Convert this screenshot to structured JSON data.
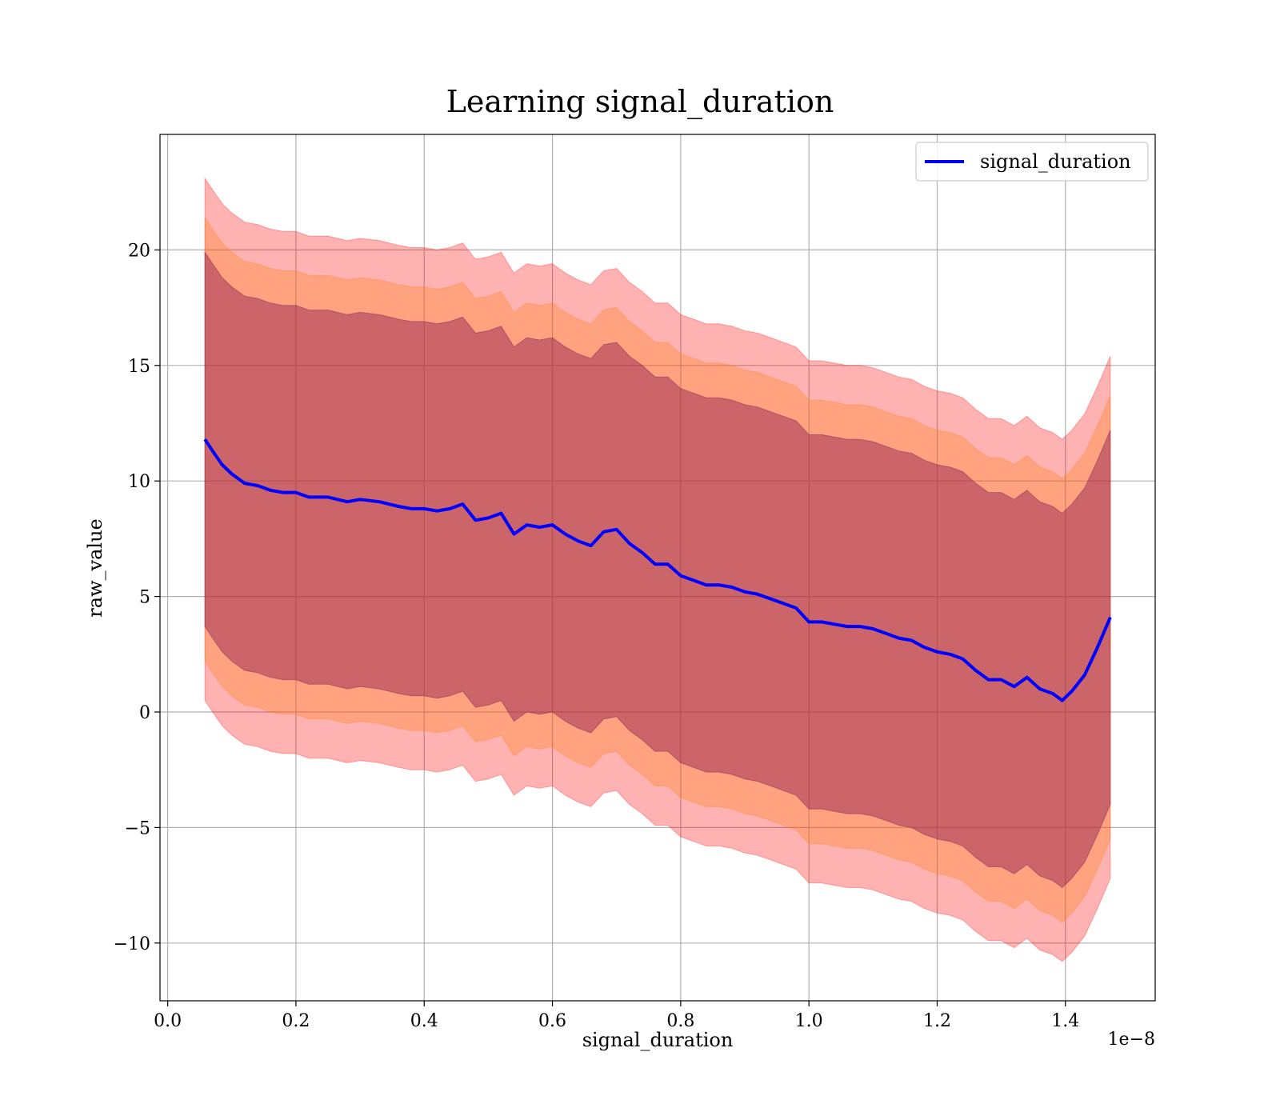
{
  "chart_data": {
    "type": "line",
    "title": "Learning signal_duration",
    "xlabel": "signal_duration",
    "ylabel": "raw_value",
    "x_offset_label": "1e−8",
    "xlim": [
      -0.012,
      1.54
    ],
    "ylim": [
      -12.5,
      25
    ],
    "grid": true,
    "legend": {
      "position": "top-right",
      "entries": [
        "signal_duration"
      ]
    },
    "x_ticks": [
      0.0,
      0.2,
      0.4,
      0.6,
      0.8,
      1.0,
      1.2,
      1.4
    ],
    "x_tick_labels": [
      "0.0",
      "0.2",
      "0.4",
      "0.6",
      "0.8",
      "1.0",
      "1.2",
      "1.4"
    ],
    "y_ticks": [
      -10,
      -5,
      0,
      5,
      10,
      15,
      20
    ],
    "y_tick_labels": [
      "−10",
      "−5",
      "0",
      "5",
      "10",
      "15",
      "20"
    ],
    "series": [
      {
        "name": "signal_duration",
        "color": "#0000ff",
        "x": [
          0.058,
          0.07,
          0.085,
          0.1,
          0.12,
          0.14,
          0.16,
          0.18,
          0.2,
          0.22,
          0.25,
          0.28,
          0.3,
          0.33,
          0.36,
          0.38,
          0.4,
          0.42,
          0.44,
          0.46,
          0.48,
          0.5,
          0.52,
          0.54,
          0.56,
          0.58,
          0.6,
          0.62,
          0.64,
          0.66,
          0.68,
          0.7,
          0.72,
          0.74,
          0.76,
          0.78,
          0.8,
          0.82,
          0.84,
          0.86,
          0.88,
          0.9,
          0.92,
          0.94,
          0.96,
          0.98,
          1.0,
          1.02,
          1.04,
          1.06,
          1.08,
          1.1,
          1.12,
          1.14,
          1.16,
          1.18,
          1.2,
          1.22,
          1.24,
          1.26,
          1.28,
          1.3,
          1.32,
          1.34,
          1.36,
          1.38,
          1.395,
          1.41,
          1.43,
          1.45,
          1.47
        ],
        "values": [
          11.8,
          11.3,
          10.7,
          10.3,
          9.9,
          9.8,
          9.6,
          9.5,
          9.5,
          9.3,
          9.3,
          9.1,
          9.2,
          9.1,
          8.9,
          8.8,
          8.8,
          8.7,
          8.8,
          9.0,
          8.3,
          8.4,
          8.6,
          7.7,
          8.1,
          8.0,
          8.1,
          7.7,
          7.4,
          7.2,
          7.8,
          7.9,
          7.3,
          6.9,
          6.4,
          6.4,
          5.9,
          5.7,
          5.5,
          5.5,
          5.4,
          5.2,
          5.1,
          4.9,
          4.7,
          4.5,
          3.9,
          3.9,
          3.8,
          3.7,
          3.7,
          3.6,
          3.4,
          3.2,
          3.1,
          2.8,
          2.6,
          2.5,
          2.3,
          1.8,
          1.4,
          1.4,
          1.1,
          1.5,
          1.0,
          0.8,
          0.5,
          0.9,
          1.6,
          2.8,
          4.1
        ]
      }
    ],
    "bands": [
      {
        "name": "band-outer",
        "color": "#ff0000",
        "opacity": 0.3,
        "x_ref": "series0",
        "lower_offset": -11.3,
        "upper_offset": 11.3
      },
      {
        "name": "band-middle",
        "color": "#ff7f0e",
        "opacity": 0.3,
        "x_ref": "series0",
        "lower_offset": -9.6,
        "upper_offset": 9.6
      },
      {
        "name": "band-inner",
        "color": "#8b1a4f",
        "opacity": 0.45,
        "x_ref": "series0",
        "lower_offset": -8.1,
        "upper_offset": 8.1
      }
    ]
  }
}
